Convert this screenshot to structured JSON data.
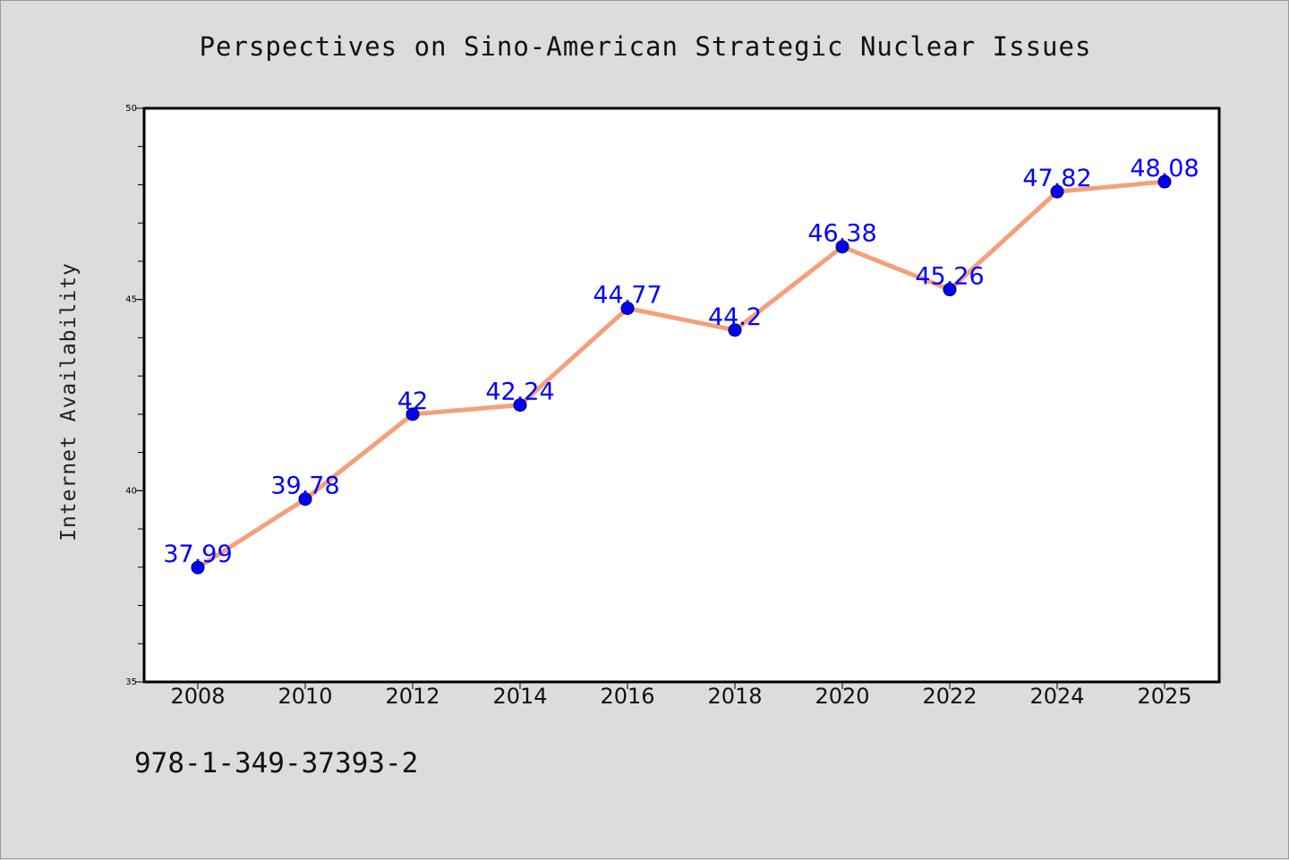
{
  "figure": {
    "title": "Perspectives on Sino-American Strategic Nuclear Issues",
    "footer_text": "978-1-349-37393-2"
  },
  "colors": {
    "background": "#dcdcdc",
    "plot_background": "#ffffff",
    "line": "#f4a07a",
    "marker": "#0000ff",
    "data_label": "#0000ff"
  },
  "chart_data": {
    "type": "line",
    "title": "Perspectives on Sino-American Strategic Nuclear Issues",
    "xlabel": "",
    "ylabel": "Internet Availability",
    "categories": [
      "2008",
      "2010",
      "2012",
      "2014",
      "2016",
      "2018",
      "2020",
      "2022",
      "2024",
      "2025"
    ],
    "series": [
      {
        "values": [
          37.99,
          39.78,
          42,
          42.24,
          44.77,
          44.2,
          46.38,
          45.26,
          47.82,
          48.08
        ]
      }
    ],
    "data_labels": [
      "37.99",
      "39.78",
      "42",
      "42.24",
      "44.77",
      "44.2",
      "46.38",
      "45.26",
      "47.82",
      "48.08"
    ],
    "ylim": [
      35,
      50
    ],
    "y_ticks": [
      35,
      40,
      45,
      50
    ],
    "y_tick_labels": [
      "35",
      "40",
      "45",
      "50"
    ],
    "y_minor_step": 1,
    "grid": false,
    "legend": "none"
  }
}
